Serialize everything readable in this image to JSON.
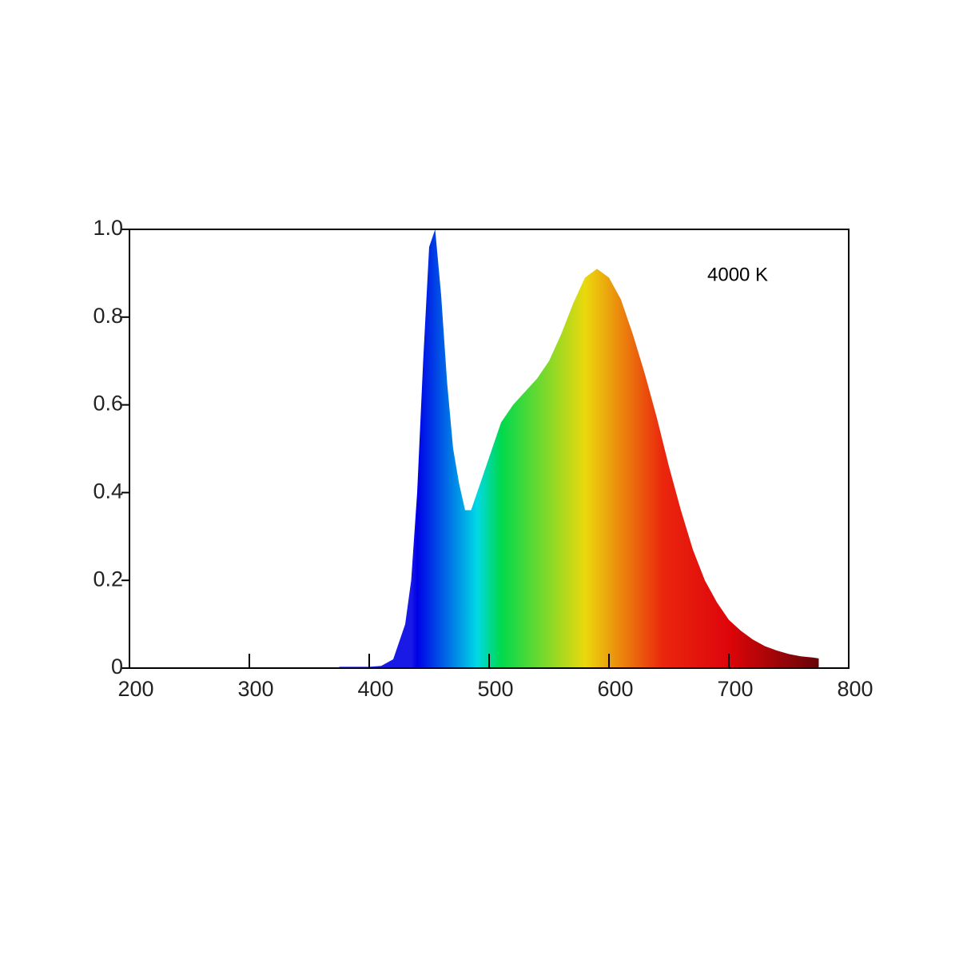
{
  "chart_data": {
    "type": "area",
    "annotation": "4000 K",
    "x": [
      375,
      400,
      410,
      420,
      430,
      435,
      440,
      445,
      450,
      455,
      460,
      465,
      470,
      475,
      480,
      485,
      490,
      500,
      510,
      520,
      530,
      540,
      550,
      560,
      570,
      580,
      590,
      600,
      610,
      620,
      630,
      640,
      650,
      660,
      670,
      680,
      690,
      700,
      710,
      720,
      730,
      740,
      750,
      760,
      770,
      775
    ],
    "values": [
      0.003,
      0.003,
      0.005,
      0.02,
      0.1,
      0.2,
      0.4,
      0.7,
      0.96,
      1.0,
      0.85,
      0.65,
      0.5,
      0.42,
      0.36,
      0.36,
      0.4,
      0.48,
      0.56,
      0.6,
      0.63,
      0.66,
      0.7,
      0.76,
      0.83,
      0.89,
      0.91,
      0.89,
      0.84,
      0.76,
      0.67,
      0.57,
      0.46,
      0.36,
      0.27,
      0.2,
      0.15,
      0.11,
      0.085,
      0.065,
      0.05,
      0.04,
      0.032,
      0.027,
      0.024,
      0.022
    ],
    "xlim": [
      200,
      800
    ],
    "ylim": [
      0,
      1
    ],
    "xticks": [
      200,
      300,
      400,
      500,
      600,
      700,
      800
    ],
    "yticks": [
      0,
      0.2,
      0.4,
      0.6,
      {
        "value": 0.8,
        "label": "0.8"
      },
      {
        "value": 1,
        "label": "1.0"
      }
    ],
    "fill": "spectrum"
  }
}
